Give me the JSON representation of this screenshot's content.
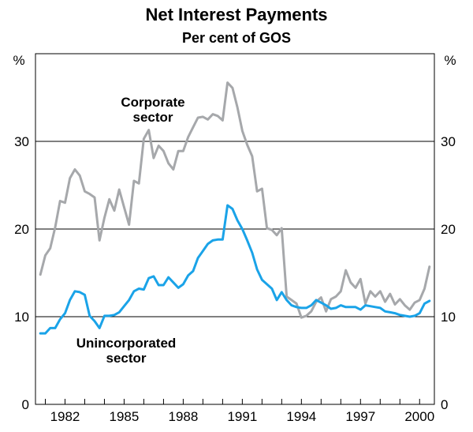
{
  "chart_data": {
    "type": "line",
    "title": "Net Interest Payments",
    "subtitle": "Per cent of GOS",
    "y_unit_left": "%",
    "y_unit_right": "%",
    "ylim": [
      0,
      40
    ],
    "xlim": [
      1980.5,
      2000.75
    ],
    "y_ticks": [
      0,
      10,
      20,
      30
    ],
    "x_ticks": [
      1982,
      1985,
      1988,
      1991,
      1994,
      1997,
      2000
    ],
    "x_tick_labels": [
      "1982",
      "1985",
      "1988",
      "1991",
      "1994",
      "1997",
      "2000"
    ],
    "grid": "horizontal",
    "annotations": [
      {
        "lines": [
          "Corporate",
          "sector"
        ],
        "series": "corporate"
      },
      {
        "lines": [
          "Unincorporated",
          "sector"
        ],
        "series": "unincorporated"
      }
    ],
    "series": [
      {
        "key": "corporate",
        "color": "#a6a8ab",
        "points": [
          [
            1980.75,
            14.8
          ],
          [
            1981.0,
            17.0
          ],
          [
            1981.25,
            17.8
          ],
          [
            1981.5,
            20.2
          ],
          [
            1981.75,
            23.2
          ],
          [
            1982.0,
            23.0
          ],
          [
            1982.25,
            25.8
          ],
          [
            1982.5,
            26.8
          ],
          [
            1982.75,
            26.1
          ],
          [
            1983.0,
            24.3
          ],
          [
            1983.25,
            24.0
          ],
          [
            1983.5,
            23.6
          ],
          [
            1983.75,
            18.7
          ],
          [
            1984.0,
            21.3
          ],
          [
            1984.25,
            23.4
          ],
          [
            1984.5,
            22.1
          ],
          [
            1984.75,
            24.5
          ],
          [
            1985.0,
            22.5
          ],
          [
            1985.25,
            20.5
          ],
          [
            1985.5,
            25.5
          ],
          [
            1985.75,
            25.2
          ],
          [
            1986.0,
            30.3
          ],
          [
            1986.25,
            31.3
          ],
          [
            1986.5,
            28.1
          ],
          [
            1986.75,
            29.5
          ],
          [
            1987.0,
            28.9
          ],
          [
            1987.25,
            27.5
          ],
          [
            1987.5,
            26.8
          ],
          [
            1987.75,
            28.9
          ],
          [
            1988.0,
            28.9
          ],
          [
            1988.25,
            30.5
          ],
          [
            1988.5,
            31.6
          ],
          [
            1988.75,
            32.7
          ],
          [
            1989.0,
            32.8
          ],
          [
            1989.25,
            32.5
          ],
          [
            1989.5,
            33.1
          ],
          [
            1989.75,
            32.9
          ],
          [
            1990.0,
            32.4
          ],
          [
            1990.25,
            36.7
          ],
          [
            1990.5,
            36.1
          ],
          [
            1990.75,
            33.9
          ],
          [
            1991.0,
            31.2
          ],
          [
            1991.25,
            29.6
          ],
          [
            1991.5,
            28.3
          ],
          [
            1991.75,
            24.3
          ],
          [
            1992.0,
            24.6
          ],
          [
            1992.25,
            20.1
          ],
          [
            1992.5,
            19.9
          ],
          [
            1992.75,
            19.3
          ],
          [
            1993.0,
            20.1
          ],
          [
            1993.25,
            12.3
          ],
          [
            1993.5,
            11.9
          ],
          [
            1993.75,
            11.5
          ],
          [
            1994.0,
            9.9
          ],
          [
            1994.25,
            10.1
          ],
          [
            1994.5,
            10.6
          ],
          [
            1994.75,
            11.7
          ],
          [
            1995.0,
            12.2
          ],
          [
            1995.25,
            10.6
          ],
          [
            1995.5,
            12.0
          ],
          [
            1995.75,
            12.3
          ],
          [
            1996.0,
            12.9
          ],
          [
            1996.25,
            15.3
          ],
          [
            1996.5,
            13.9
          ],
          [
            1996.75,
            13.3
          ],
          [
            1997.0,
            14.3
          ],
          [
            1997.25,
            11.5
          ],
          [
            1997.5,
            12.9
          ],
          [
            1997.75,
            12.3
          ],
          [
            1998.0,
            12.9
          ],
          [
            1998.25,
            11.7
          ],
          [
            1998.5,
            12.6
          ],
          [
            1998.75,
            11.4
          ],
          [
            1999.0,
            12.0
          ],
          [
            1999.25,
            11.3
          ],
          [
            1999.5,
            10.8
          ],
          [
            1999.75,
            11.6
          ],
          [
            2000.0,
            11.9
          ],
          [
            2000.25,
            13.2
          ],
          [
            2000.5,
            15.7
          ]
        ]
      },
      {
        "key": "unincorporated",
        "color": "#1aa3e8",
        "points": [
          [
            1980.75,
            8.1
          ],
          [
            1981.0,
            8.1
          ],
          [
            1981.25,
            8.7
          ],
          [
            1981.5,
            8.7
          ],
          [
            1981.75,
            9.7
          ],
          [
            1982.0,
            10.4
          ],
          [
            1982.25,
            11.9
          ],
          [
            1982.5,
            12.9
          ],
          [
            1982.75,
            12.8
          ],
          [
            1983.0,
            12.5
          ],
          [
            1983.25,
            10.1
          ],
          [
            1983.5,
            9.5
          ],
          [
            1983.75,
            8.7
          ],
          [
            1984.0,
            10.1
          ],
          [
            1984.25,
            10.1
          ],
          [
            1984.5,
            10.2
          ],
          [
            1984.75,
            10.5
          ],
          [
            1985.0,
            11.2
          ],
          [
            1985.25,
            11.9
          ],
          [
            1985.5,
            12.9
          ],
          [
            1985.75,
            13.2
          ],
          [
            1986.0,
            13.1
          ],
          [
            1986.25,
            14.4
          ],
          [
            1986.5,
            14.6
          ],
          [
            1986.75,
            13.6
          ],
          [
            1987.0,
            13.6
          ],
          [
            1987.25,
            14.5
          ],
          [
            1987.5,
            13.9
          ],
          [
            1987.75,
            13.3
          ],
          [
            1988.0,
            13.7
          ],
          [
            1988.25,
            14.7
          ],
          [
            1988.5,
            15.2
          ],
          [
            1988.75,
            16.7
          ],
          [
            1989.0,
            17.5
          ],
          [
            1989.25,
            18.3
          ],
          [
            1989.5,
            18.7
          ],
          [
            1989.75,
            18.8
          ],
          [
            1990.0,
            18.8
          ],
          [
            1990.25,
            22.7
          ],
          [
            1990.5,
            22.3
          ],
          [
            1990.75,
            21.0
          ],
          [
            1991.0,
            20.0
          ],
          [
            1991.25,
            18.7
          ],
          [
            1991.5,
            17.3
          ],
          [
            1991.75,
            15.4
          ],
          [
            1992.0,
            14.2
          ],
          [
            1992.25,
            13.7
          ],
          [
            1992.5,
            13.2
          ],
          [
            1992.75,
            11.9
          ],
          [
            1993.0,
            12.8
          ],
          [
            1993.25,
            11.9
          ],
          [
            1993.5,
            11.3
          ],
          [
            1993.75,
            11.1
          ],
          [
            1994.0,
            11.0
          ],
          [
            1994.25,
            11.0
          ],
          [
            1994.5,
            11.3
          ],
          [
            1994.75,
            11.9
          ],
          [
            1995.0,
            11.6
          ],
          [
            1995.25,
            11.3
          ],
          [
            1995.5,
            10.9
          ],
          [
            1995.75,
            11.0
          ],
          [
            1996.0,
            11.3
          ],
          [
            1996.25,
            11.1
          ],
          [
            1996.5,
            11.1
          ],
          [
            1996.75,
            11.1
          ],
          [
            1997.0,
            10.8
          ],
          [
            1997.25,
            11.3
          ],
          [
            1997.5,
            11.2
          ],
          [
            1997.75,
            11.1
          ],
          [
            1998.0,
            11.0
          ],
          [
            1998.25,
            10.6
          ],
          [
            1998.5,
            10.5
          ],
          [
            1998.75,
            10.4
          ],
          [
            1999.0,
            10.2
          ],
          [
            1999.25,
            10.1
          ],
          [
            1999.5,
            10.0
          ],
          [
            1999.75,
            10.1
          ],
          [
            2000.0,
            10.4
          ],
          [
            2000.25,
            11.5
          ],
          [
            2000.5,
            11.8
          ]
        ]
      }
    ]
  }
}
